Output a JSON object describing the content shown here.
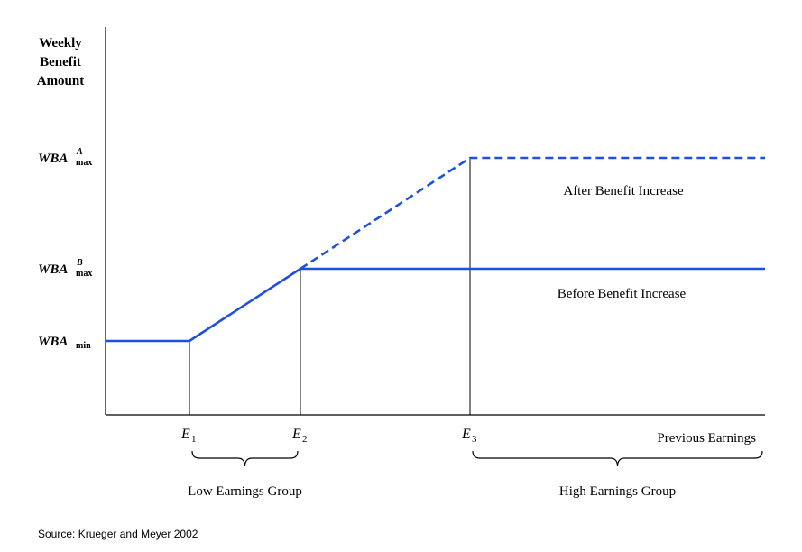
{
  "chart_data": {
    "type": "line",
    "y_title": [
      "Weekly",
      "Benefit",
      "Amount"
    ],
    "x_title": "Previous Earnings",
    "x_ticks": [
      {
        "id": "E1",
        "main": "E",
        "sub": "1",
        "x": 1
      },
      {
        "id": "E2",
        "main": "E",
        "sub": "2",
        "x": 2
      },
      {
        "id": "E3",
        "main": "E",
        "sub": "3",
        "x": 3
      }
    ],
    "y_ticks": [
      {
        "id": "wba-min",
        "main": "WBA",
        "sub": "min",
        "sup": "",
        "y": 1
      },
      {
        "id": "wba-max-b",
        "main": "WBA",
        "sub": "max",
        "sup": "B",
        "y": 2
      },
      {
        "id": "wba-max-a",
        "main": "WBA",
        "sub": "max",
        "sup": "A",
        "y": 3
      }
    ],
    "xlim": [
      0,
      5
    ],
    "ylim": [
      0,
      4
    ],
    "series": [
      {
        "name": "Before Benefit Increase",
        "style": "solid",
        "color": "#1f4fe0",
        "points": [
          [
            0,
            1
          ],
          [
            1,
            1
          ],
          [
            2,
            2
          ],
          [
            5,
            2
          ]
        ]
      },
      {
        "name": "After Benefit Increase",
        "style": "dashed",
        "color": "#1f4fe0",
        "points": [
          [
            2,
            2
          ],
          [
            3,
            3
          ],
          [
            5,
            3
          ]
        ]
      }
    ],
    "groups": [
      {
        "id": "low",
        "label": "Low Earnings Group",
        "from": 1,
        "to": 2
      },
      {
        "id": "high",
        "label": "High Earnings Group",
        "from": 3,
        "to": 5
      }
    ],
    "source": "Source: Krueger and Meyer 2002"
  }
}
